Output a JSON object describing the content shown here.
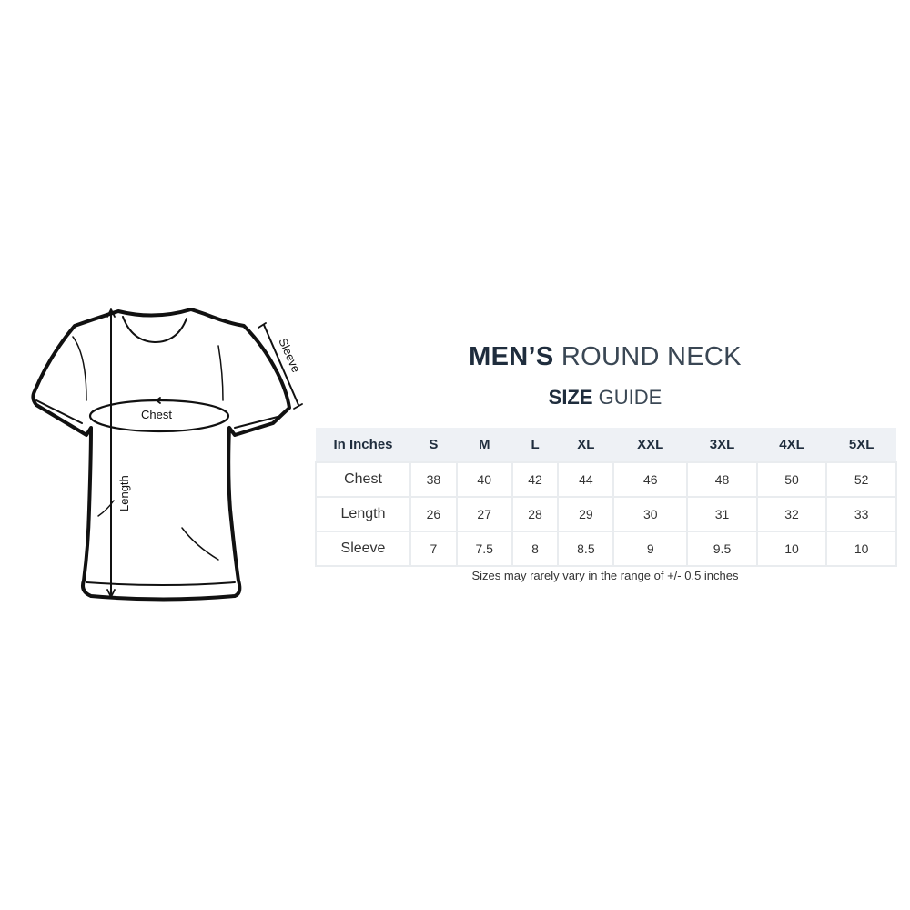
{
  "title": {
    "bold": "MEN’S",
    "light": "ROUND NECK"
  },
  "subtitle": {
    "bold": "SIZE",
    "light": "GUIDE"
  },
  "diagram": {
    "labels": {
      "chest": "Chest",
      "length": "Length",
      "sleeve": "Sleeve"
    }
  },
  "table": {
    "headers": [
      "In Inches",
      "S",
      "M",
      "L",
      "XL",
      "XXL",
      "3XL",
      "4XL",
      "5XL"
    ],
    "rows": [
      {
        "label": "Chest",
        "values": [
          "38",
          "40",
          "42",
          "44",
          "46",
          "48",
          "50",
          "52"
        ]
      },
      {
        "label": "Length",
        "values": [
          "26",
          "27",
          "28",
          "29",
          "30",
          "31",
          "32",
          "33"
        ]
      },
      {
        "label": "Sleeve",
        "values": [
          "7",
          "7.5",
          "8",
          "8.5",
          "9",
          "9.5",
          "10",
          "10"
        ]
      }
    ]
  },
  "note": "Sizes may rarely vary in the range of +/- 0.5 inches"
}
